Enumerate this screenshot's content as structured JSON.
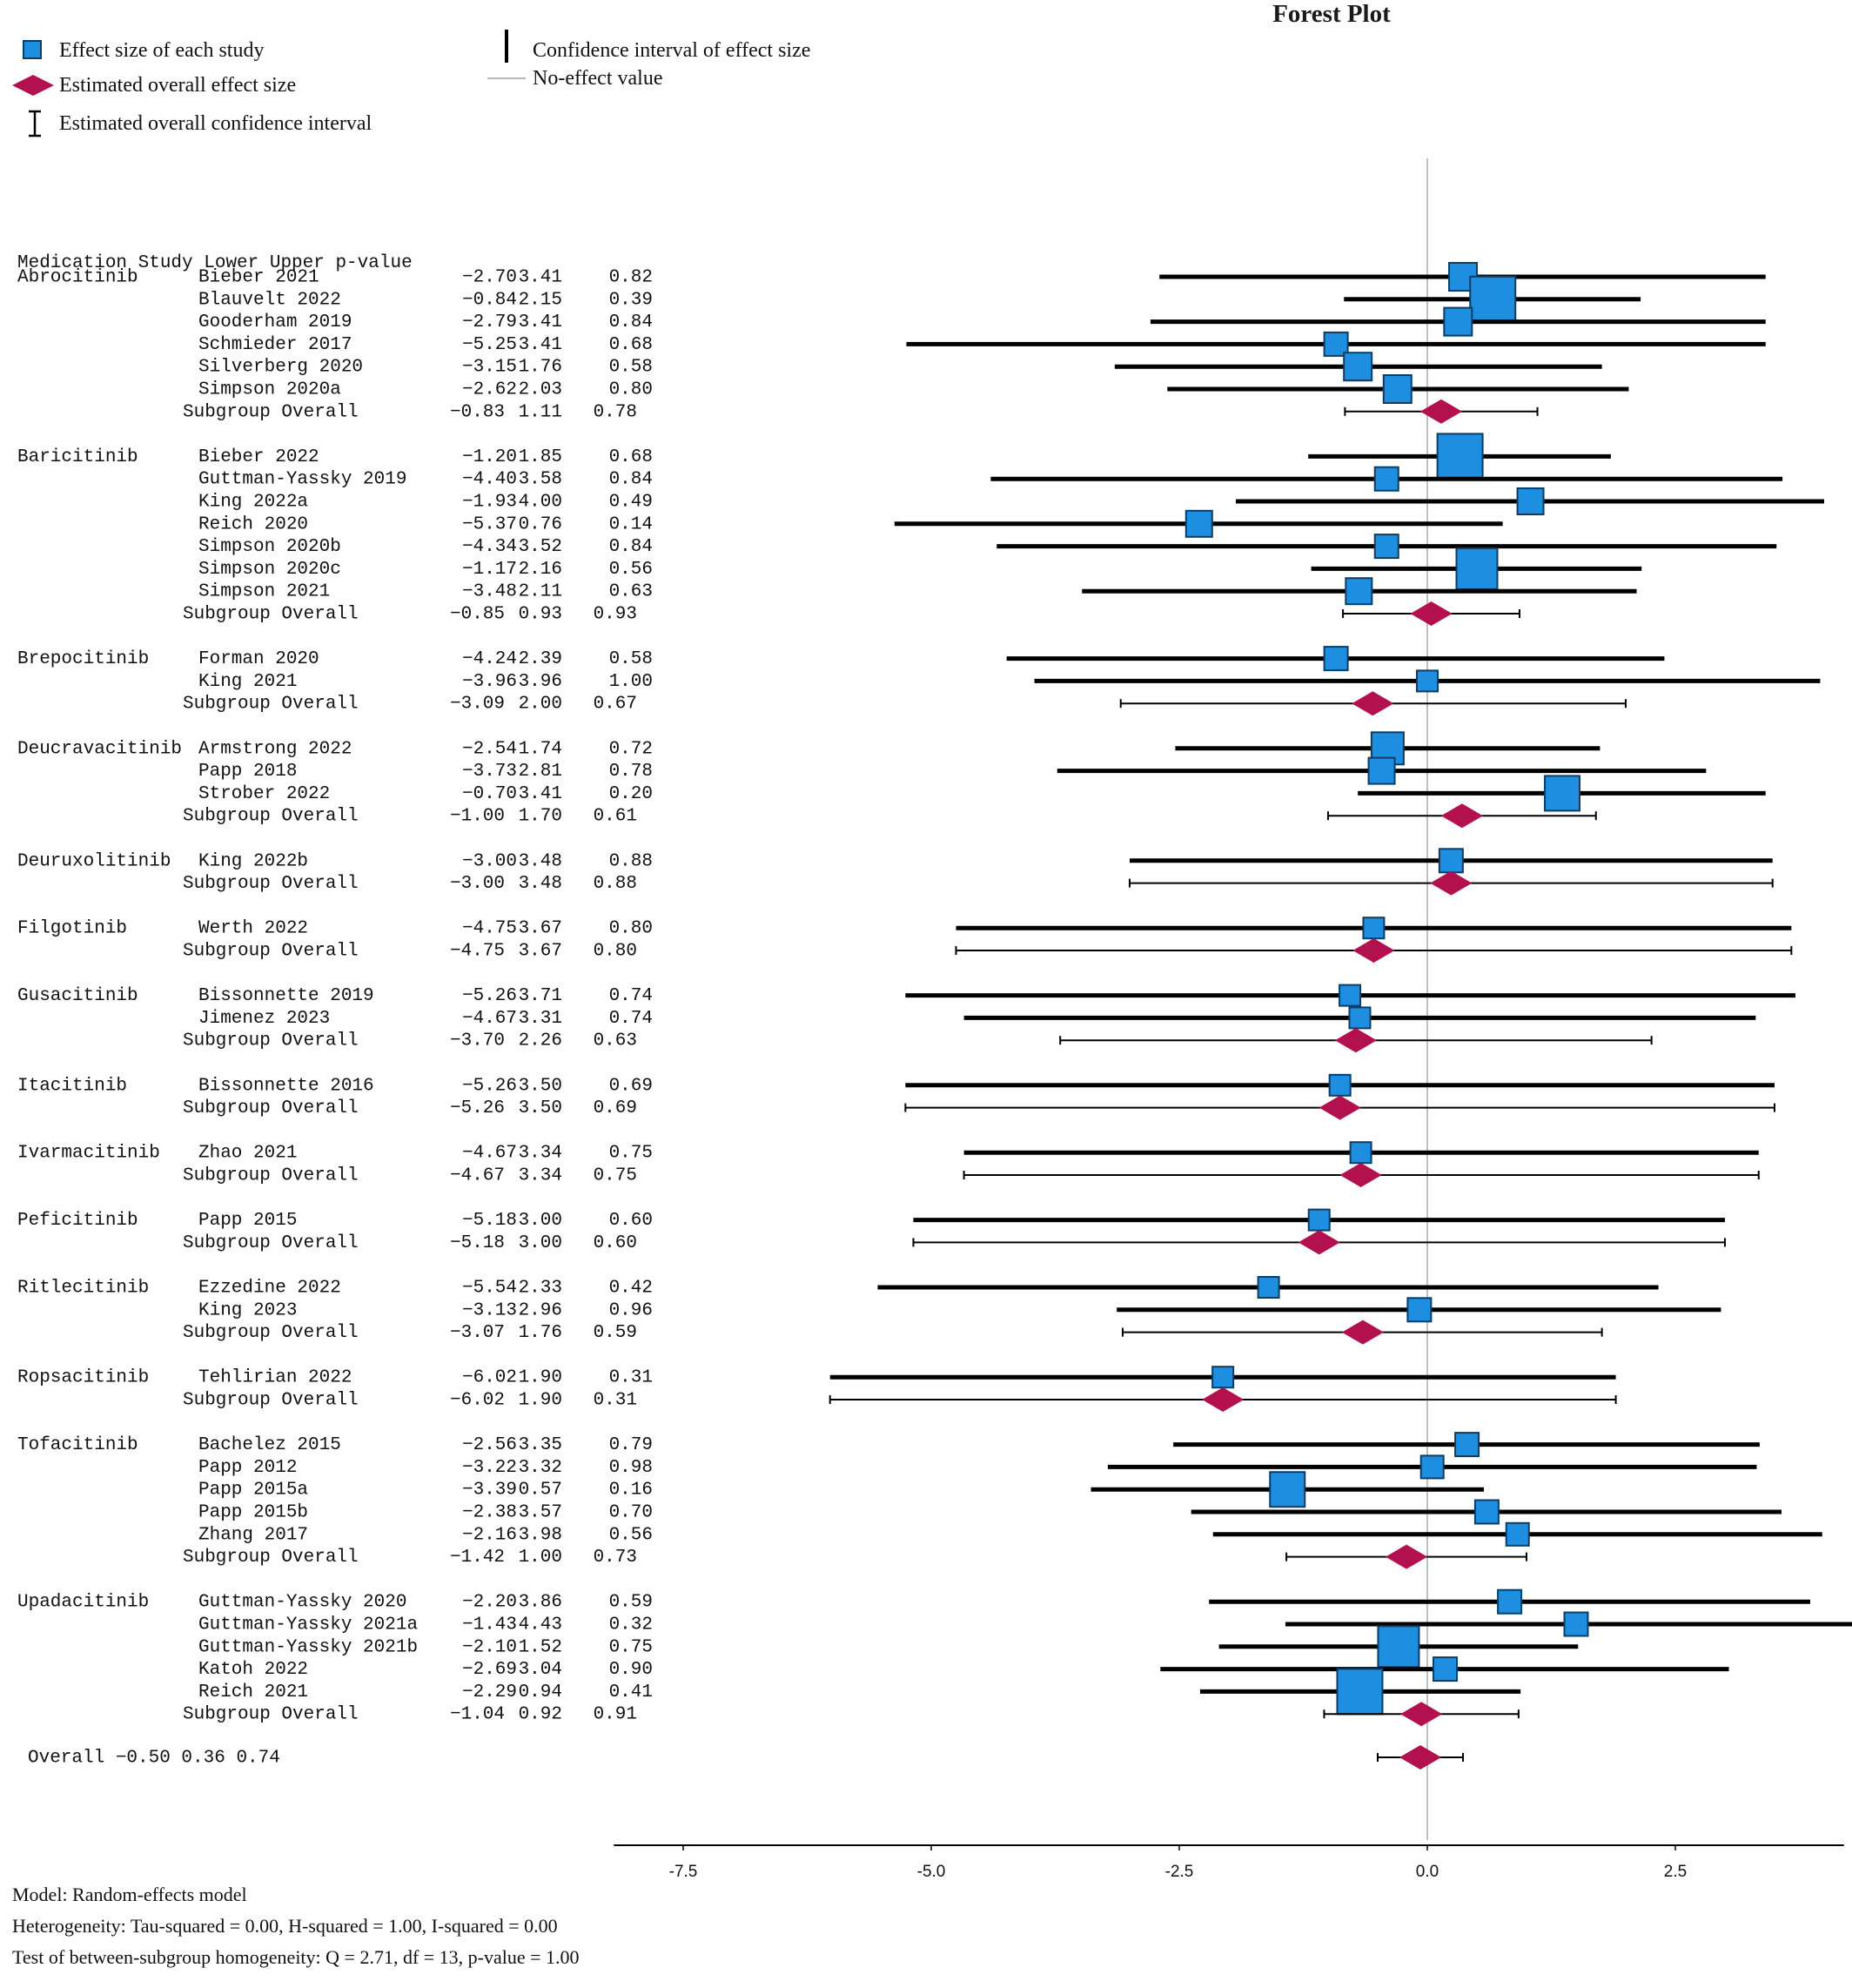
{
  "legend": {
    "study_effect": "Effect size of each study",
    "overall_effect": "Estimated overall effect size",
    "overall_ci": "Estimated overall confidence interval",
    "study_ci": "Confidence interval of effect size",
    "no_effect": "No-effect value"
  },
  "footer": {
    "model": "Model: Random-effects model",
    "heterogeneity": "Heterogeneity: Tau-squared = 0.00, H-squared = 1.00, I-squared = 0.00",
    "homogeneity": "Test of between-subgroup homogeneity: Q = 2.71, df = 13, p-value = 1.00"
  },
  "colors": {
    "study_square": "#1e8ee0",
    "overall_diamond": "#b3104f",
    "ci_line": "#000000",
    "no_effect_line": "#c0c0c0"
  },
  "chart_data": {
    "type": "forest",
    "title": "Forest Plot",
    "xlim": [
      -8.2,
      4.2
    ],
    "x_ticks": [
      -7.5,
      -5.0,
      -2.5,
      0.0,
      2.5
    ],
    "x_tick_labels": [
      "-7.5",
      "-5.0",
      "-2.5",
      "0.0",
      "2.5"
    ],
    "no_effect_value": 0,
    "grid": false,
    "legend_position": "top-left",
    "table_header": "Medication  Study  Lower Upper p-value",
    "subgroup_label": "Subgroup Overall",
    "overall_label": "Overall",
    "groups": [
      {
        "medication": "Abrocitinib",
        "studies": [
          {
            "study": "Bieber 2021",
            "effect": 0.36,
            "lower": -2.7,
            "upper": 3.41,
            "lower_text": "−2.70",
            "upper_text": "3.41",
            "p_text": "0.82",
            "weight": 2
          },
          {
            "study": "Blauvelt 2022",
            "effect": 0.66,
            "lower": -0.84,
            "upper": 2.15,
            "lower_text": "−0.84",
            "upper_text": "2.15",
            "p_text": "0.39",
            "weight": 4
          },
          {
            "study": "Gooderham 2019",
            "effect": 0.31,
            "lower": -2.79,
            "upper": 3.41,
            "lower_text": "−2.79",
            "upper_text": "3.41",
            "p_text": "0.84",
            "weight": 2
          },
          {
            "study": "Schmieder 2017",
            "effect": -0.92,
            "lower": -5.25,
            "upper": 3.41,
            "lower_text": "−5.25",
            "upper_text": "3.41",
            "p_text": "0.68",
            "weight": 1.5
          },
          {
            "study": "Silverberg 2020",
            "effect": -0.7,
            "lower": -3.15,
            "upper": 1.76,
            "lower_text": "−3.15",
            "upper_text": "1.76",
            "p_text": "0.58",
            "weight": 2
          },
          {
            "study": "Simpson 2020a",
            "effect": -0.3,
            "lower": -2.62,
            "upper": 2.03,
            "lower_text": "−2.62",
            "upper_text": "2.03",
            "p_text": "0.80",
            "weight": 2
          }
        ],
        "subgroup": {
          "effect": 0.14,
          "lower": -0.83,
          "upper": 1.11,
          "lower_text": "−0.83",
          "upper_text": "1.11",
          "p_text": "0.78"
        }
      },
      {
        "medication": "Baricitinib",
        "studies": [
          {
            "study": "Bieber 2022",
            "effect": 0.33,
            "lower": -1.2,
            "upper": 1.85,
            "lower_text": "−1.20",
            "upper_text": "1.85",
            "p_text": "0.68",
            "weight": 4
          },
          {
            "study": "Guttman-Yassky 2019",
            "effect": -0.41,
            "lower": -4.4,
            "upper": 3.58,
            "lower_text": "−4.40",
            "upper_text": "3.58",
            "p_text": "0.84",
            "weight": 1.5
          },
          {
            "study": "King 2022a",
            "effect": 1.04,
            "lower": -1.93,
            "upper": 4.0,
            "lower_text": "−1.93",
            "upper_text": "4.00",
            "p_text": "0.49",
            "weight": 1.8
          },
          {
            "study": "Reich 2020",
            "effect": -2.3,
            "lower": -5.37,
            "upper": 0.76,
            "lower_text": "−5.37",
            "upper_text": "0.76",
            "p_text": "0.14",
            "weight": 1.8
          },
          {
            "study": "Simpson 2020b",
            "effect": -0.41,
            "lower": -4.34,
            "upper": 3.52,
            "lower_text": "−4.34",
            "upper_text": "3.52",
            "p_text": "0.84",
            "weight": 1.5
          },
          {
            "study": "Simpson 2020c",
            "effect": 0.5,
            "lower": -1.17,
            "upper": 2.16,
            "lower_text": "−1.17",
            "upper_text": "2.16",
            "p_text": "0.56",
            "weight": 3.5
          },
          {
            "study": "Simpson 2021",
            "effect": -0.69,
            "lower": -3.48,
            "upper": 2.11,
            "lower_text": "−3.48",
            "upper_text": "2.11",
            "p_text": "0.63",
            "weight": 1.8
          }
        ],
        "subgroup": {
          "effect": 0.04,
          "lower": -0.85,
          "upper": 0.93,
          "lower_text": "−0.85",
          "upper_text": "0.93",
          "p_text": "0.93"
        }
      },
      {
        "medication": "Brepocitinib",
        "studies": [
          {
            "study": "Forman 2020",
            "effect": -0.92,
            "lower": -4.24,
            "upper": 2.39,
            "lower_text": "−4.24",
            "upper_text": "2.39",
            "p_text": "0.58",
            "weight": 1.5
          },
          {
            "study": "King 2021",
            "effect": 0.0,
            "lower": -3.96,
            "upper": 3.96,
            "lower_text": "−3.96",
            "upper_text": "3.96",
            "p_text": "1.00",
            "weight": 1.2
          }
        ],
        "subgroup": {
          "effect": -0.55,
          "lower": -3.09,
          "upper": 2.0,
          "lower_text": "−3.09",
          "upper_text": "2.00",
          "p_text": "0.67"
        }
      },
      {
        "medication": "Deucravacitinib",
        "studies": [
          {
            "study": "Armstrong 2022",
            "effect": -0.4,
            "lower": -2.54,
            "upper": 1.74,
            "lower_text": "−2.54",
            "upper_text": "1.74",
            "p_text": "0.72",
            "weight": 2.5
          },
          {
            "study": "Papp 2018",
            "effect": -0.46,
            "lower": -3.73,
            "upper": 2.81,
            "lower_text": "−3.73",
            "upper_text": "2.81",
            "p_text": "0.78",
            "weight": 1.8
          },
          {
            "study": "Strober 2022",
            "effect": 1.36,
            "lower": -0.7,
            "upper": 3.41,
            "lower_text": "−0.70",
            "upper_text": "3.41",
            "p_text": "0.20",
            "weight": 2.8
          }
        ],
        "subgroup": {
          "effect": 0.35,
          "lower": -1.0,
          "upper": 1.7,
          "lower_text": "−1.00",
          "upper_text": "1.70",
          "p_text": "0.61"
        }
      },
      {
        "medication": "Deuruxolitinib",
        "studies": [
          {
            "study": "King 2022b",
            "effect": 0.24,
            "lower": -3.0,
            "upper": 3.48,
            "lower_text": "−3.00",
            "upper_text": "3.48",
            "p_text": "0.88",
            "weight": 1.5
          }
        ],
        "subgroup": {
          "effect": 0.24,
          "lower": -3.0,
          "upper": 3.48,
          "lower_text": "−3.00",
          "upper_text": "3.48",
          "p_text": "0.88"
        }
      },
      {
        "medication": "Filgotinib",
        "studies": [
          {
            "study": "Werth 2022",
            "effect": -0.54,
            "lower": -4.75,
            "upper": 3.67,
            "lower_text": "−4.75",
            "upper_text": "3.67",
            "p_text": "0.80",
            "weight": 1.2
          }
        ],
        "subgroup": {
          "effect": -0.54,
          "lower": -4.75,
          "upper": 3.67,
          "lower_text": "−4.75",
          "upper_text": "3.67",
          "p_text": "0.80"
        }
      },
      {
        "medication": "Gusacitinib",
        "studies": [
          {
            "study": "Bissonnette 2019",
            "effect": -0.78,
            "lower": -5.26,
            "upper": 3.71,
            "lower_text": "−5.26",
            "upper_text": "3.71",
            "p_text": "0.74",
            "weight": 1.2
          },
          {
            "study": "Jimenez 2023",
            "effect": -0.68,
            "lower": -4.67,
            "upper": 3.31,
            "lower_text": "−4.67",
            "upper_text": "3.31",
            "p_text": "0.74",
            "weight": 1.2
          }
        ],
        "subgroup": {
          "effect": -0.72,
          "lower": -3.7,
          "upper": 2.26,
          "lower_text": "−3.70",
          "upper_text": "2.26",
          "p_text": "0.63"
        }
      },
      {
        "medication": "Itacitinib",
        "studies": [
          {
            "study": "Bissonnette 2016",
            "effect": -0.88,
            "lower": -5.26,
            "upper": 3.5,
            "lower_text": "−5.26",
            "upper_text": "3.50",
            "p_text": "0.69",
            "weight": 1.2
          }
        ],
        "subgroup": {
          "effect": -0.88,
          "lower": -5.26,
          "upper": 3.5,
          "lower_text": "−5.26",
          "upper_text": "3.50",
          "p_text": "0.69"
        }
      },
      {
        "medication": "Ivarmacitinib",
        "studies": [
          {
            "study": "Zhao 2021",
            "effect": -0.67,
            "lower": -4.67,
            "upper": 3.34,
            "lower_text": "−4.67",
            "upper_text": "3.34",
            "p_text": "0.75",
            "weight": 1.2
          }
        ],
        "subgroup": {
          "effect": -0.67,
          "lower": -4.67,
          "upper": 3.34,
          "lower_text": "−4.67",
          "upper_text": "3.34",
          "p_text": "0.75"
        }
      },
      {
        "medication": "Peficitinib",
        "studies": [
          {
            "study": "Papp 2015",
            "effect": -1.09,
            "lower": -5.18,
            "upper": 3.0,
            "lower_text": "−5.18",
            "upper_text": "3.00",
            "p_text": "0.60",
            "weight": 1.2
          }
        ],
        "subgroup": {
          "effect": -1.09,
          "lower": -5.18,
          "upper": 3.0,
          "lower_text": "−5.18",
          "upper_text": "3.00",
          "p_text": "0.60"
        }
      },
      {
        "medication": "Ritlecitinib",
        "studies": [
          {
            "study": "Ezzedine 2022",
            "effect": -1.6,
            "lower": -5.54,
            "upper": 2.33,
            "lower_text": "−5.54",
            "upper_text": "2.33",
            "p_text": "0.42",
            "weight": 1.2
          },
          {
            "study": "King 2023",
            "effect": -0.08,
            "lower": -3.13,
            "upper": 2.96,
            "lower_text": "−3.13",
            "upper_text": "2.96",
            "p_text": "0.96",
            "weight": 1.5
          }
        ],
        "subgroup": {
          "effect": -0.65,
          "lower": -3.07,
          "upper": 1.76,
          "lower_text": "−3.07",
          "upper_text": "1.76",
          "p_text": "0.59"
        }
      },
      {
        "medication": "Ropsacitinib",
        "studies": [
          {
            "study": "Tehlirian 2022",
            "effect": -2.06,
            "lower": -6.02,
            "upper": 1.9,
            "lower_text": "−6.02",
            "upper_text": "1.90",
            "p_text": "0.31",
            "weight": 1.2
          }
        ],
        "subgroup": {
          "effect": -2.06,
          "lower": -6.02,
          "upper": 1.9,
          "lower_text": "−6.02",
          "upper_text": "1.90",
          "p_text": "0.31"
        }
      },
      {
        "medication": "Tofacitinib",
        "studies": [
          {
            "study": "Bachelez 2015",
            "effect": 0.4,
            "lower": -2.56,
            "upper": 3.35,
            "lower_text": "−2.56",
            "upper_text": "3.35",
            "p_text": "0.79",
            "weight": 1.5
          },
          {
            "study": "Papp 2012",
            "effect": 0.05,
            "lower": -3.22,
            "upper": 3.32,
            "lower_text": "−3.22",
            "upper_text": "3.32",
            "p_text": "0.98",
            "weight": 1.4
          },
          {
            "study": "Papp 2015a",
            "effect": -1.41,
            "lower": -3.39,
            "upper": 0.57,
            "lower_text": "−3.39",
            "upper_text": "0.57",
            "p_text": "0.16",
            "weight": 2.8
          },
          {
            "study": "Papp 2015b",
            "effect": 0.6,
            "lower": -2.38,
            "upper": 3.57,
            "lower_text": "−2.38",
            "upper_text": "3.57",
            "p_text": "0.70",
            "weight": 1.5
          },
          {
            "study": "Zhang 2017",
            "effect": 0.91,
            "lower": -2.16,
            "upper": 3.98,
            "lower_text": "−2.16",
            "upper_text": "3.98",
            "p_text": "0.56",
            "weight": 1.4
          }
        ],
        "subgroup": {
          "effect": -0.21,
          "lower": -1.42,
          "upper": 1.0,
          "lower_text": "−1.42",
          "upper_text": "1.00",
          "p_text": "0.73"
        }
      },
      {
        "medication": "Upadacitinib",
        "studies": [
          {
            "study": "Guttman-Yassky 2020",
            "effect": 0.83,
            "lower": -2.2,
            "upper": 3.86,
            "lower_text": "−2.20",
            "upper_text": "3.86",
            "p_text": "0.59",
            "weight": 1.5
          },
          {
            "study": "Guttman-Yassky 2021a",
            "effect": 1.5,
            "lower": -1.43,
            "upper": 4.43,
            "lower_text": "−1.43",
            "upper_text": "4.43",
            "p_text": "0.32",
            "weight": 1.5
          },
          {
            "study": "Guttman-Yassky 2021b",
            "effect": -0.29,
            "lower": -2.1,
            "upper": 1.52,
            "lower_text": "−2.10",
            "upper_text": "1.52",
            "p_text": "0.75",
            "weight": 3.5
          },
          {
            "study": "Katoh 2022",
            "effect": 0.18,
            "lower": -2.69,
            "upper": 3.04,
            "lower_text": "−2.69",
            "upper_text": "3.04",
            "p_text": "0.90",
            "weight": 1.5
          },
          {
            "study": "Reich 2021",
            "effect": -0.68,
            "lower": -2.29,
            "upper": 0.94,
            "lower_text": "−2.29",
            "upper_text": "0.94",
            "p_text": "0.41",
            "weight": 4
          }
        ],
        "subgroup": {
          "effect": -0.06,
          "lower": -1.04,
          "upper": 0.92,
          "lower_text": "−1.04",
          "upper_text": "0.92",
          "p_text": "0.91"
        }
      }
    ],
    "overall": {
      "effect": -0.07,
      "lower": -0.5,
      "upper": 0.36,
      "lower_text": "−0.50",
      "upper_text": "0.36",
      "p_text": "0.74"
    }
  }
}
